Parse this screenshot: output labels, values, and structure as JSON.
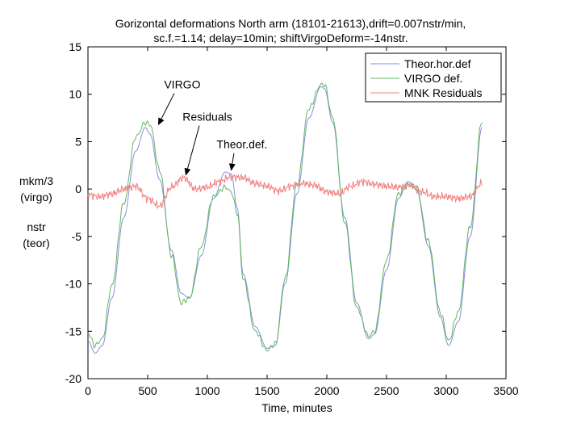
{
  "chart_data": {
    "type": "line",
    "title_line1": "Gorizontal deformations North arm (18101-21613),drift=0.007nstr/min,",
    "title_line2": "sc.f.=1.14; delay=10min; shiftVirgoDeform=-14nstr.",
    "xlabel": "Time, minutes",
    "ylabel_lines": [
      "mkm/3",
      "(virgo)",
      "nstr",
      "(teor)"
    ],
    "xlim": [
      0,
      3500
    ],
    "ylim": [
      -20,
      15
    ],
    "xticks": [
      0,
      500,
      1000,
      1500,
      2000,
      2500,
      3000,
      3500
    ],
    "yticks": [
      -20,
      -15,
      -10,
      -5,
      0,
      5,
      10,
      15
    ],
    "grid": false,
    "legend_position": "top-right",
    "series": [
      {
        "name": "Theor.hor.def",
        "color": "#8a8ee0",
        "x": [
          0,
          60,
          120,
          200,
          300,
          400,
          480,
          520,
          600,
          700,
          780,
          850,
          950,
          1050,
          1150,
          1200,
          1250,
          1300,
          1400,
          1500,
          1570,
          1650,
          1750,
          1850,
          1950,
          1980,
          2050,
          2150,
          2250,
          2350,
          2400,
          2500,
          2600,
          2680,
          2750,
          2850,
          2950,
          3020,
          3100,
          3200,
          3300
        ],
        "y": [
          -16.0,
          -17.3,
          -16.5,
          -11.5,
          -3.0,
          4.0,
          6.5,
          5.8,
          1.0,
          -6.5,
          -11.0,
          -11.5,
          -7.0,
          -1.0,
          1.8,
          1.6,
          -2.0,
          -9.0,
          -14.5,
          -16.8,
          -16.5,
          -10.0,
          -0.5,
          7.5,
          10.8,
          10.6,
          7.0,
          -3.0,
          -12.0,
          -15.8,
          -15.3,
          -8.5,
          -1.0,
          0.8,
          0.0,
          -6.0,
          -13.5,
          -16.5,
          -14.0,
          -5.0,
          6.5
        ]
      },
      {
        "name": "VIRGO def.",
        "color": "#5fb85f",
        "x": [
          0,
          60,
          120,
          200,
          300,
          400,
          480,
          520,
          600,
          700,
          780,
          850,
          950,
          1050,
          1150,
          1200,
          1250,
          1300,
          1400,
          1500,
          1570,
          1650,
          1750,
          1850,
          1950,
          1980,
          2050,
          2150,
          2250,
          2350,
          2400,
          2500,
          2600,
          2680,
          2750,
          2850,
          2950,
          3020,
          3100,
          3200,
          3300
        ],
        "y": [
          -15.2,
          -16.5,
          -15.8,
          -10.2,
          -1.5,
          5.5,
          7.0,
          6.8,
          2.0,
          -7.0,
          -12.0,
          -11.5,
          -6.0,
          -0.8,
          0.2,
          -0.3,
          -2.5,
          -9.5,
          -15.0,
          -17.0,
          -16.3,
          -9.5,
          0.5,
          8.5,
          11.0,
          11.0,
          7.5,
          -3.5,
          -12.5,
          -15.5,
          -15.0,
          -7.5,
          -0.5,
          0.5,
          0.2,
          -5.5,
          -13.0,
          -16.0,
          -13.0,
          -4.0,
          7.2
        ]
      },
      {
        "name": "MNK Residuals",
        "color": "#f08080",
        "x": [
          0,
          100,
          200,
          300,
          400,
          500,
          600,
          700,
          800,
          900,
          1000,
          1100,
          1200,
          1300,
          1400,
          1500,
          1600,
          1700,
          1800,
          1900,
          2000,
          2100,
          2200,
          2300,
          2400,
          2500,
          2600,
          2700,
          2800,
          2900,
          3000,
          3100,
          3200,
          3300
        ],
        "y": [
          -0.6,
          -0.8,
          -0.5,
          0.0,
          0.3,
          -1.0,
          -1.8,
          0.2,
          1.2,
          0.0,
          0.2,
          0.8,
          1.3,
          1.2,
          0.6,
          0.3,
          -0.2,
          0.3,
          0.6,
          0.4,
          -0.3,
          -0.5,
          0.3,
          0.8,
          0.5,
          0.3,
          0.2,
          0.4,
          -0.3,
          -0.8,
          -0.8,
          -1.0,
          -0.8,
          0.6
        ]
      }
    ],
    "annotations": [
      {
        "text": "VIRGO",
        "x": 790,
        "y": 10.6,
        "arrow_to_x": 590,
        "arrow_to_y": 6.8
      },
      {
        "text": "Residuals",
        "x": 1000,
        "y": 7.2,
        "arrow_to_x": 820,
        "arrow_to_y": 1.5
      },
      {
        "text": "Theor.def.",
        "x": 1290,
        "y": 4.3,
        "arrow_to_x": 1200,
        "arrow_to_y": 2.0
      }
    ]
  }
}
